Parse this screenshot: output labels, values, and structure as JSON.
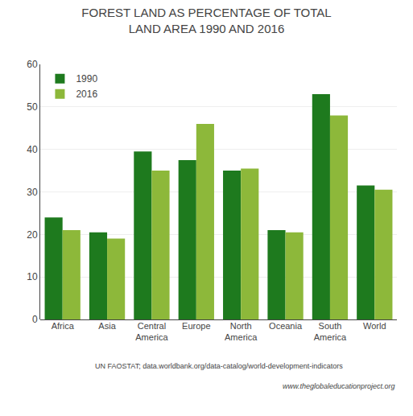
{
  "chart_data": {
    "type": "bar",
    "title": "FOREST LAND AS PERCENTAGE OF TOTAL\nLAND AREA 1990 AND 2016",
    "categories": [
      "Africa",
      "Asia",
      "Central\nAmerica",
      "Europe",
      "North\nAmerica",
      "Oceania",
      "South\nAmerica",
      "World"
    ],
    "series": [
      {
        "name": "1990",
        "color": "#1e7a1e",
        "values": [
          24,
          20.5,
          39.5,
          37.5,
          35,
          21,
          53,
          31.5
        ]
      },
      {
        "name": "2016",
        "color": "#8db83a",
        "values": [
          21,
          19,
          35,
          46,
          35.5,
          20.5,
          48,
          30.5
        ]
      }
    ],
    "ylim": [
      0,
      60
    ],
    "yticks": [
      0,
      10,
      20,
      30,
      40,
      50,
      60
    ],
    "grid": true,
    "legend": "upper left",
    "annotations": [
      "UN FAOSTAT; data.worldbank.org/data-catalog/world-development-indicators",
      "www.theglobaleducationproject.org"
    ]
  }
}
